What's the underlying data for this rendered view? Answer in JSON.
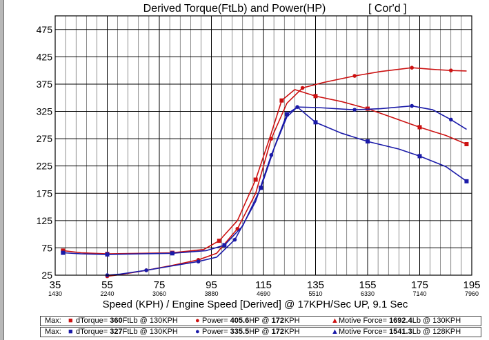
{
  "chart_data": {
    "type": "line",
    "title": "Derived Torque(FtLb) and Power(HP)",
    "title_tag": "[ Cor'd ]",
    "xlabel": "Speed (KPH) / Engine Speed [Derived] @ 17KPH/Sec UP, 9.1 Sec",
    "xlim": [
      35,
      195
    ],
    "ylim": [
      25,
      500
    ],
    "x_ticks": [
      35,
      55,
      75,
      95,
      115,
      135,
      155,
      175,
      195
    ],
    "x_rpm_ticks": [
      "1430",
      "2240",
      "3060",
      "3880",
      "4690",
      "5510",
      "6330",
      "7140",
      "7960"
    ],
    "y_ticks": [
      25,
      75,
      125,
      175,
      225,
      275,
      325,
      375,
      425,
      475
    ],
    "grid": true,
    "series": [
      {
        "name": "Red dTorque",
        "color": "#cc1111",
        "marker": "square",
        "points": [
          [
            38,
            70
          ],
          [
            45,
            66
          ],
          [
            55,
            64
          ],
          [
            68,
            65
          ],
          [
            80,
            66
          ],
          [
            92,
            72
          ],
          [
            98,
            88
          ],
          [
            105,
            125
          ],
          [
            112,
            200
          ],
          [
            118,
            285
          ],
          [
            122,
            345
          ],
          [
            127,
            365
          ],
          [
            135,
            353
          ],
          [
            145,
            343
          ],
          [
            155,
            330
          ],
          [
            165,
            313
          ],
          [
            175,
            296
          ],
          [
            185,
            281
          ],
          [
            193,
            265
          ]
        ]
      },
      {
        "name": "Red Power",
        "color": "#cc1111",
        "marker": "circle",
        "points": [
          [
            55,
            23
          ],
          [
            60,
            26
          ],
          [
            70,
            34
          ],
          [
            80,
            43
          ],
          [
            90,
            53
          ],
          [
            97,
            65
          ],
          [
            105,
            110
          ],
          [
            112,
            175
          ],
          [
            118,
            275
          ],
          [
            124,
            340
          ],
          [
            130,
            368
          ],
          [
            138,
            378
          ],
          [
            150,
            390
          ],
          [
            160,
            398
          ],
          [
            172,
            405
          ],
          [
            180,
            402
          ],
          [
            187,
            400
          ],
          [
            193,
            399
          ]
        ]
      },
      {
        "name": "Blue dTorque",
        "color": "#1a1aa8",
        "marker": "square",
        "points": [
          [
            38,
            66
          ],
          [
            45,
            64
          ],
          [
            55,
            63
          ],
          [
            68,
            64
          ],
          [
            80,
            65
          ],
          [
            93,
            70
          ],
          [
            100,
            80
          ],
          [
            107,
            115
          ],
          [
            114,
            185
          ],
          [
            120,
            270
          ],
          [
            124,
            320
          ],
          [
            128,
            333
          ],
          [
            135,
            305
          ],
          [
            145,
            285
          ],
          [
            155,
            270
          ],
          [
            167,
            256
          ],
          [
            175,
            243
          ],
          [
            185,
            224
          ],
          [
            193,
            197
          ]
        ]
      },
      {
        "name": "Blue Power",
        "color": "#1a1aa8",
        "marker": "circle",
        "points": [
          [
            55,
            25
          ],
          [
            60,
            27
          ],
          [
            70,
            34
          ],
          [
            80,
            42
          ],
          [
            90,
            50
          ],
          [
            97,
            58
          ],
          [
            104,
            90
          ],
          [
            112,
            160
          ],
          [
            118,
            245
          ],
          [
            124,
            315
          ],
          [
            128,
            333
          ],
          [
            136,
            332
          ],
          [
            150,
            328
          ],
          [
            160,
            330
          ],
          [
            172,
            335
          ],
          [
            180,
            328
          ],
          [
            187,
            310
          ],
          [
            193,
            292
          ]
        ]
      }
    ],
    "legend": [
      {
        "max": "Max:",
        "torque_pre": "dTorque= ",
        "torque_val": "360",
        "torque_unit": "FtLb @ 130KPH",
        "power_pre": "Power= ",
        "power_val": "405.6",
        "power_unit": "HP @ ",
        "power_speed": "172",
        "power_kph": "KPH",
        "force_pre": "Motive Force= ",
        "force_val": "1692.4",
        "force_unit": "Lb @ 130KPH"
      },
      {
        "max": "Max:",
        "torque_pre": "dTorque= ",
        "torque_val": "327",
        "torque_unit": "FtLb @ 130KPH",
        "power_pre": "Power= ",
        "power_val": "335.5",
        "power_unit": "HP @ ",
        "power_speed": "172",
        "power_kph": "KPH",
        "force_pre": "Motive Force= ",
        "force_val": "1541.3",
        "force_unit": "Lb @ 128KPH"
      }
    ]
  }
}
